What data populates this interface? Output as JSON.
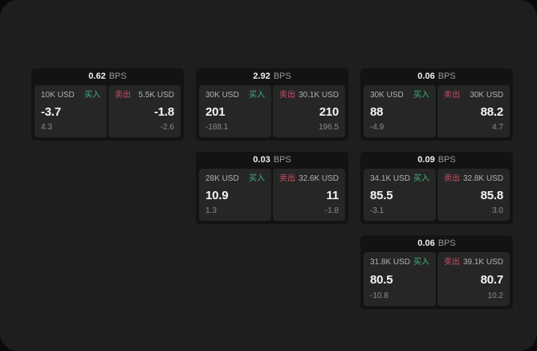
{
  "labels": {
    "bps": "BPS",
    "buy": "买入",
    "sell": "卖出"
  },
  "colors": {
    "outer_bg": "#0a0a0a",
    "page_bg": "#1e1e1e",
    "card_bg": "#131314",
    "panel_bg": "#262627",
    "buy_green": "#3fb377",
    "sell_red": "#cc4f63",
    "value_white": "#f4f4f5",
    "label_gray": "#b1b1b4",
    "muted_gray": "#8c8c8e"
  },
  "cards": [
    {
      "bps": "0.62",
      "buy": {
        "volume": "10K USD",
        "value": "-3.7",
        "delta": "4.3"
      },
      "sell": {
        "volume": "5.5K USD",
        "value": "-1.8",
        "delta": "-2.6"
      }
    },
    {
      "bps": "2.92",
      "buy": {
        "volume": "30K USD",
        "value": "201",
        "delta": "-188.1"
      },
      "sell": {
        "volume": "30.1K USD",
        "value": "210",
        "delta": "196.5"
      }
    },
    {
      "bps": "0.06",
      "buy": {
        "volume": "30K USD",
        "value": "88",
        "delta": "-4.9"
      },
      "sell": {
        "volume": "30K USD",
        "value": "88.2",
        "delta": "4.7"
      }
    },
    {
      "bps": "0.03",
      "buy": {
        "volume": "28K USD",
        "value": "10.9",
        "delta": "1.3"
      },
      "sell": {
        "volume": "32.6K USD",
        "value": "11",
        "delta": "-1.8"
      }
    },
    {
      "bps": "0.09",
      "buy": {
        "volume": "34.1K USD",
        "value": "85.5",
        "delta": "-3.1"
      },
      "sell": {
        "volume": "32.8K USD",
        "value": "85.8",
        "delta": "3.0"
      }
    },
    {
      "bps": "0.06",
      "buy": {
        "volume": "31.8K USD",
        "value": "80.5",
        "delta": "-10.8"
      },
      "sell": {
        "volume": "39.1K USD",
        "value": "80.7",
        "delta": "10.2"
      }
    }
  ]
}
